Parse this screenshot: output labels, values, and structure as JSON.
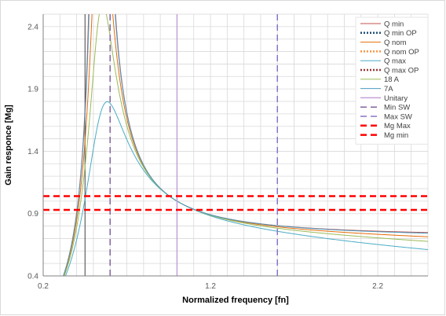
{
  "chart_data": {
    "type": "line",
    "title": "",
    "xlabel": "Normalized frequency [fn]",
    "ylabel": "Gain responce [Mg]",
    "xlim": [
      0.2,
      2.5
    ],
    "ylim": [
      0.4,
      2.5
    ],
    "x_ticks": [
      0.2,
      1.2,
      2.2
    ],
    "x_tick_labels": [
      "0.2",
      "1.2",
      "2.2"
    ],
    "y_ticks": [
      0.4,
      0.9,
      1.4,
      1.9,
      2.4
    ],
    "y_tick_labels": [
      "0.4",
      "0.9",
      "1.4",
      "1.9",
      "2.4"
    ],
    "minor_grid": {
      "x_step": 0.1,
      "y_step": 0.1
    },
    "grid": true,
    "legend_position": "top-right",
    "lln": {
      "k": 2.5,
      "fmin": 0.2,
      "fmax": 2.5
    },
    "series": [
      {
        "name": "Q min",
        "kind": "curve",
        "q": 0.02,
        "color": "#C0504D",
        "dash": "solid",
        "width": 1
      },
      {
        "name": "Q min OP",
        "kind": "marker",
        "color": "#1F4E79",
        "dash": "dotted",
        "width": 2.5
      },
      {
        "name": "Q nom",
        "kind": "curve",
        "q": 0.2,
        "color": "#E46C0A",
        "dash": "solid",
        "width": 1
      },
      {
        "name": "Q nom OP",
        "kind": "marker",
        "color": "#F79646",
        "dash": "dotted",
        "width": 2.5
      },
      {
        "name": "Q max",
        "kind": "curve",
        "q": 0.45,
        "color": "#4BACC6",
        "dash": "solid",
        "width": 1
      },
      {
        "name": "Q max OP",
        "kind": "marker",
        "color": "#953735",
        "dash": "dotted",
        "width": 2.5
      },
      {
        "name": "18 A",
        "kind": "curve",
        "q": 0.3,
        "color": "#9BBB59",
        "dash": "solid",
        "width": 1
      },
      {
        "name": "7A",
        "kind": "curve",
        "q": 0.08,
        "color": "#4A9BC0",
        "dash": "solid",
        "width": 1
      },
      {
        "name": "Unitary",
        "kind": "vline",
        "x": 1.0,
        "color": "#C3A0D9",
        "dash": "solid",
        "width": 1.5
      },
      {
        "name": "Min SW",
        "kind": "vline",
        "x": 0.6,
        "color": "#8064A2",
        "dash": "dashed",
        "width": 1.5
      },
      {
        "name": "Max SW",
        "kind": "vline",
        "x": 1.6,
        "color": "#8A74C7",
        "dash": "dashed",
        "width": 1.5
      },
      {
        "name": "Mg Max",
        "kind": "hline",
        "y": 1.04,
        "color": "#FF0000",
        "dash": "dashed",
        "width": 2.5
      },
      {
        "name": "Mg min",
        "kind": "hline",
        "y": 0.93,
        "color": "#FF0000",
        "dash": "dashed",
        "width": 2.5
      }
    ],
    "extra_vlines": [
      {
        "x": 0.45,
        "color": "#404040",
        "dash": "solid",
        "width": 1
      }
    ]
  }
}
